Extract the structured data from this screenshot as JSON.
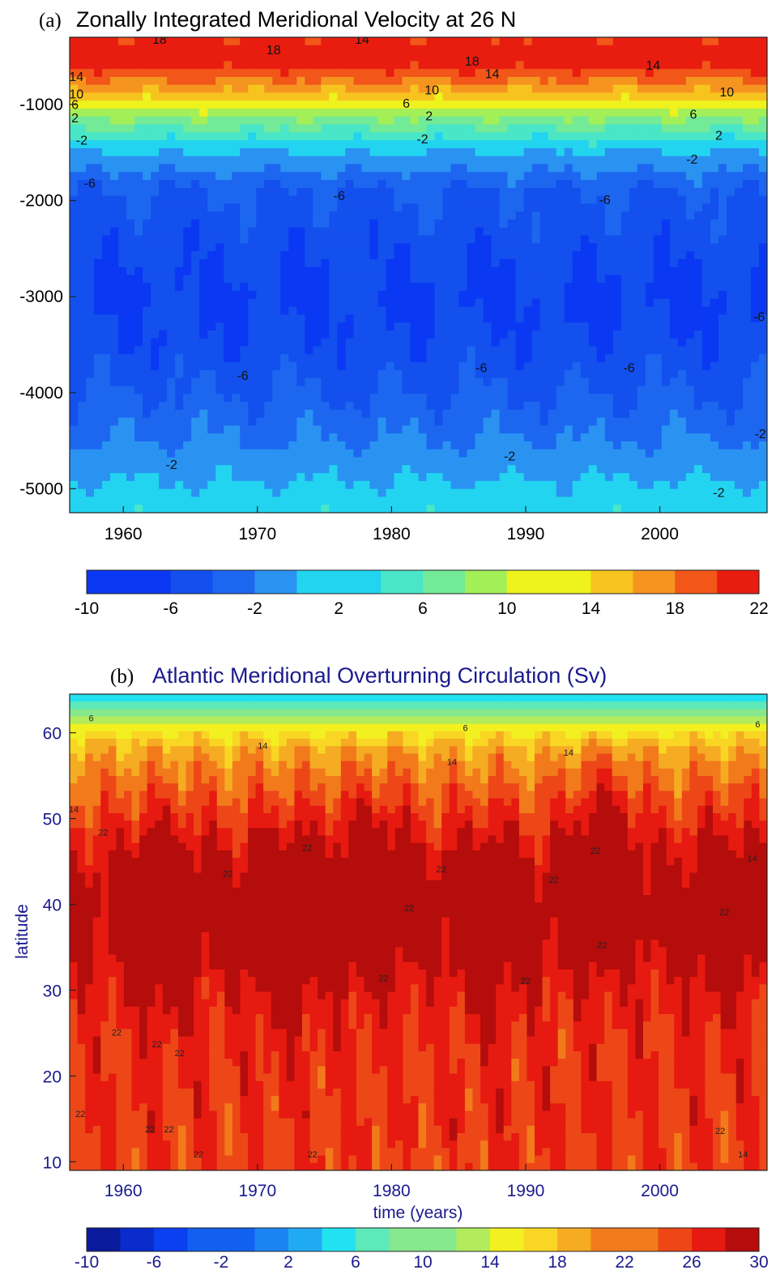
{
  "colors": {
    "ramp_a": [
      "#0b38f2",
      "#1350ee",
      "#1d67f0",
      "#2a93f2",
      "#22d4f0",
      "#49e6c7",
      "#72ea97",
      "#a3ef58",
      "#eef21d",
      "#f7c41f",
      "#f59520",
      "#f25618",
      "#e81d10"
    ],
    "ramp_b": [
      "#0a1a9c",
      "#0a2ccc",
      "#0a40ef",
      "#1260f0",
      "#1c84f2",
      "#21aaf4",
      "#22e2f2",
      "#5de9ba",
      "#86e88c",
      "#b2ec5c",
      "#f2f020",
      "#f9d524",
      "#f5ab22",
      "#f27a1b",
      "#ed4718",
      "#e61a10",
      "#b50c0c"
    ],
    "title_dark": "#000000",
    "title_navy": "#1a1a8e"
  },
  "chart_data": [
    {
      "type": "heatmap",
      "panel_tag": "(a)",
      "title": "Zonally Integrated Meridional Velocity at 26 N",
      "xlabel": "",
      "ylabel": "",
      "xlim": [
        1956,
        2008
      ],
      "ylim": [
        -5250,
        -300
      ],
      "x_ticks": [
        1960,
        1970,
        1980,
        1990,
        2000
      ],
      "y_ticks": [
        -1000,
        -2000,
        -3000,
        -4000,
        -5000
      ],
      "colorbar": {
        "levels": [
          -10,
          -8,
          -6,
          -4,
          -2,
          0,
          2,
          4,
          6,
          8,
          10,
          12,
          14,
          16,
          18,
          20,
          22
        ],
        "tick_labels": [
          "-10",
          "-6",
          "-2",
          "2",
          "6",
          "10",
          "14",
          "18",
          "22"
        ]
      },
      "depth_profile": [
        {
          "depth": -300,
          "value": 14
        },
        {
          "depth": -500,
          "value": 16
        },
        {
          "depth": -700,
          "value": 13
        },
        {
          "depth": -900,
          "value": 9
        },
        {
          "depth": -1100,
          "value": 5
        },
        {
          "depth": -1300,
          "value": 1
        },
        {
          "depth": -1500,
          "value": -2
        },
        {
          "depth": -1700,
          "value": -4
        },
        {
          "depth": -1900,
          "value": -6
        },
        {
          "depth": -2500,
          "value": -7.4
        },
        {
          "depth": -3000,
          "value": -8.3
        },
        {
          "depth": -3500,
          "value": -7.5
        },
        {
          "depth": -4000,
          "value": -6
        },
        {
          "depth": -4500,
          "value": -4
        },
        {
          "depth": -5000,
          "value": -1.6
        },
        {
          "depth": -5250,
          "value": -0.4
        }
      ],
      "contour_labels": [
        {
          "text": "18",
          "x": 1962.7,
          "y": -330
        },
        {
          "text": "14",
          "x": 1977.8,
          "y": -330
        },
        {
          "text": "18",
          "x": 1971.2,
          "y": -440
        },
        {
          "text": "18",
          "x": 1986.0,
          "y": -560
        },
        {
          "text": "14",
          "x": 1987.5,
          "y": -690
        },
        {
          "text": "14",
          "x": 1999.5,
          "y": -600
        },
        {
          "text": "14",
          "x": 1956.5,
          "y": -720
        },
        {
          "text": "10",
          "x": 1956.5,
          "y": -900
        },
        {
          "text": "10",
          "x": 1983.0,
          "y": -860
        },
        {
          "text": "10",
          "x": 2005.0,
          "y": -880
        },
        {
          "text": "6",
          "x": 1956.4,
          "y": -1010
        },
        {
          "text": "6",
          "x": 1981.1,
          "y": -1000
        },
        {
          "text": "6",
          "x": 2002.5,
          "y": -1110
        },
        {
          "text": "2",
          "x": 1956.4,
          "y": -1150
        },
        {
          "text": "2",
          "x": 1982.8,
          "y": -1130
        },
        {
          "text": "2",
          "x": 2004.4,
          "y": -1330
        },
        {
          "text": "-2",
          "x": 1956.9,
          "y": -1380
        },
        {
          "text": "-2",
          "x": 1982.3,
          "y": -1370
        },
        {
          "text": "-2",
          "x": 2002.4,
          "y": -1580
        },
        {
          "text": "-6",
          "x": 1957.5,
          "y": -1830
        },
        {
          "text": "-6",
          "x": 1976.1,
          "y": -1960
        },
        {
          "text": "-6",
          "x": 1995.9,
          "y": -2000
        },
        {
          "text": "-6",
          "x": 2007.4,
          "y": -3220
        },
        {
          "text": "-6",
          "x": 1968.9,
          "y": -3830
        },
        {
          "text": "-6",
          "x": 1986.7,
          "y": -3750
        },
        {
          "text": "-6",
          "x": 1997.7,
          "y": -3750
        },
        {
          "text": "-2",
          "x": 1963.6,
          "y": -4760
        },
        {
          "text": "-2",
          "x": 1988.8,
          "y": -4670
        },
        {
          "text": "-2",
          "x": 2007.5,
          "y": -4440
        },
        {
          "text": "-2",
          "x": 2004.4,
          "y": -5050
        }
      ]
    },
    {
      "type": "heatmap",
      "panel_tag": "(b)",
      "title": "Atlantic Meridional Overturning Circulation (Sv)",
      "xlabel": "time (years)",
      "ylabel": "latitude",
      "xlim": [
        1956,
        2008
      ],
      "ylim": [
        9,
        64.5
      ],
      "x_ticks": [
        1960,
        1970,
        1980,
        1990,
        2000
      ],
      "y_ticks": [
        10,
        20,
        30,
        40,
        50,
        60
      ],
      "colorbar": {
        "levels": [
          -10,
          -8,
          -6,
          -4,
          -2,
          0,
          2,
          4,
          6,
          8,
          10,
          12,
          14,
          16,
          18,
          20,
          22,
          24,
          26,
          28,
          30
        ],
        "tick_labels": [
          "-10",
          "-6",
          "-2",
          "2",
          "6",
          "10",
          "14",
          "18",
          "22",
          "26",
          "30"
        ]
      },
      "latitude_profile": [
        {
          "lat": 64.5,
          "value": 3
        },
        {
          "lat": 63.5,
          "value": 5
        },
        {
          "lat": 62,
          "value": 8
        },
        {
          "lat": 60,
          "value": 12
        },
        {
          "lat": 58,
          "value": 15
        },
        {
          "lat": 55,
          "value": 17
        },
        {
          "lat": 50,
          "value": 19.5
        },
        {
          "lat": 45,
          "value": 21.8
        },
        {
          "lat": 40,
          "value": 23.5
        },
        {
          "lat": 35,
          "value": 22.5
        },
        {
          "lat": 30,
          "value": 20.8
        },
        {
          "lat": 25,
          "value": 20
        },
        {
          "lat": 20,
          "value": 20
        },
        {
          "lat": 15,
          "value": 20
        },
        {
          "lat": 10,
          "value": 19.5
        }
      ],
      "cores": [
        {
          "year": 1963.0,
          "lat": 38.5,
          "peak": 5.5
        },
        {
          "year": 1972.0,
          "lat": 37,
          "peak": 6
        },
        {
          "year": 1978.5,
          "lat": 42,
          "peak": 5
        },
        {
          "year": 1987.0,
          "lat": 38,
          "peak": 4.5
        },
        {
          "year": 1995.8,
          "lat": 45,
          "peak": 5.5
        },
        {
          "year": 2004.8,
          "lat": 39,
          "peak": 4
        }
      ],
      "contour_labels": [
        {
          "text": "6",
          "x": 1957.6,
          "y": 61.6
        },
        {
          "text": "6",
          "x": 1985.5,
          "y": 60.5
        },
        {
          "text": "6",
          "x": 2007.3,
          "y": 60.9
        },
        {
          "text": "14",
          "x": 1970.4,
          "y": 58.4
        },
        {
          "text": "14",
          "x": 1984.5,
          "y": 56.5
        },
        {
          "text": "14",
          "x": 1993.2,
          "y": 57.6
        },
        {
          "text": "14",
          "x": 1956.3,
          "y": 51.0
        },
        {
          "text": "14",
          "x": 2006.9,
          "y": 45.3
        },
        {
          "text": "22",
          "x": 1958.5,
          "y": 48.3
        },
        {
          "text": "22",
          "x": 1967.8,
          "y": 43.5
        },
        {
          "text": "22",
          "x": 1973.7,
          "y": 46.5
        },
        {
          "text": "22",
          "x": 1981.3,
          "y": 39.5
        },
        {
          "text": "22",
          "x": 1983.7,
          "y": 44.0
        },
        {
          "text": "22",
          "x": 1979.4,
          "y": 31.3
        },
        {
          "text": "22",
          "x": 1990.0,
          "y": 31.0
        },
        {
          "text": "22",
          "x": 1992.1,
          "y": 42.8
        },
        {
          "text": "22",
          "x": 1995.2,
          "y": 46.2
        },
        {
          "text": "22",
          "x": 1995.7,
          "y": 35.2
        },
        {
          "text": "22",
          "x": 1959.5,
          "y": 25.0
        },
        {
          "text": "22",
          "x": 1962.5,
          "y": 23.6
        },
        {
          "text": "22",
          "x": 1964.2,
          "y": 22.6
        },
        {
          "text": "22",
          "x": 1956.8,
          "y": 15.5
        },
        {
          "text": "22",
          "x": 1962.0,
          "y": 13.7
        },
        {
          "text": "22",
          "x": 1963.4,
          "y": 13.7
        },
        {
          "text": "22",
          "x": 1965.6,
          "y": 10.8
        },
        {
          "text": "22",
          "x": 1974.1,
          "y": 10.8
        },
        {
          "text": "22",
          "x": 2004.5,
          "y": 13.5
        },
        {
          "text": "22",
          "x": 2004.8,
          "y": 39.0
        },
        {
          "text": "14",
          "x": 2006.2,
          "y": 10.8
        }
      ]
    }
  ]
}
